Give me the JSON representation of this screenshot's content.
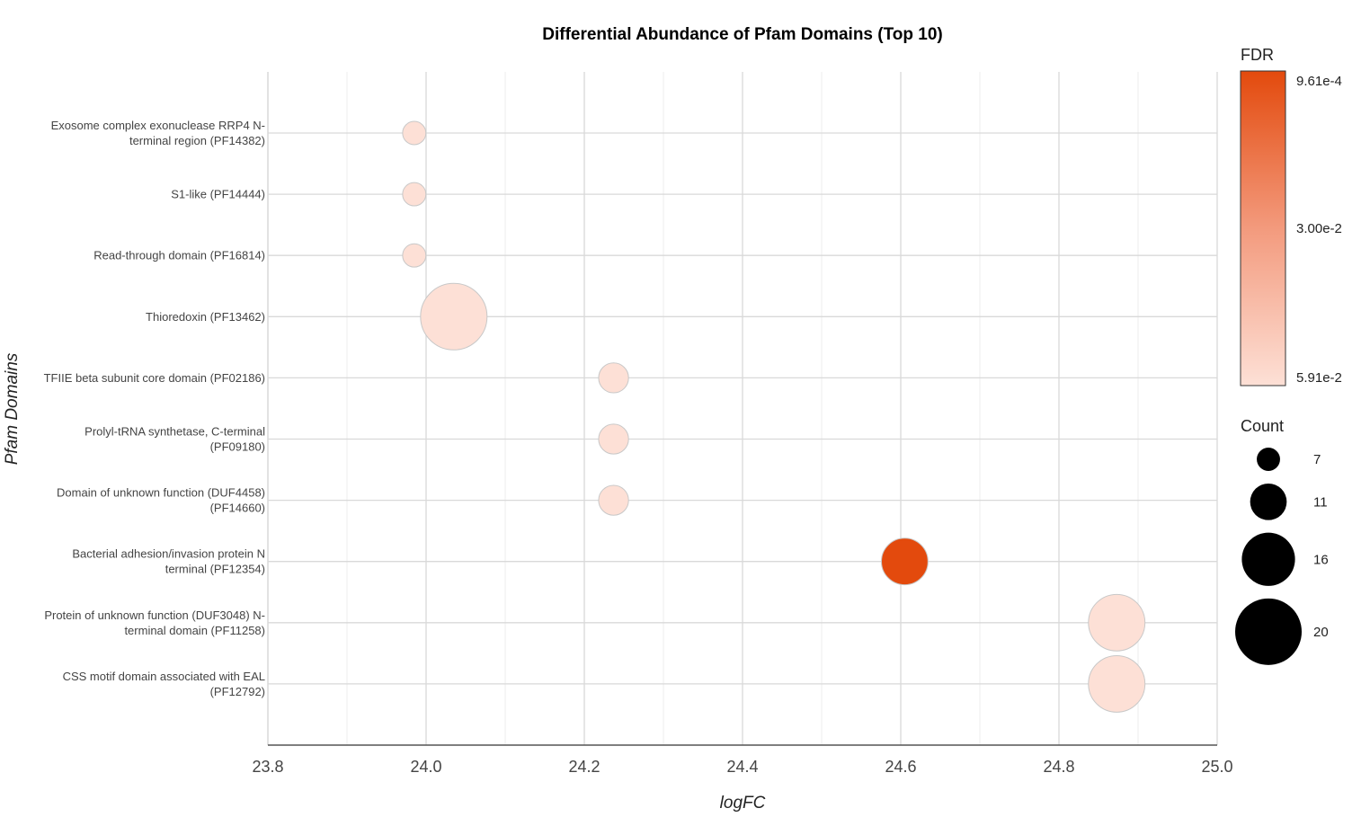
{
  "chart_data": {
    "type": "scatter",
    "title": "Differential Abundance of Pfam Domains (Top 10)",
    "xlabel": "logFC",
    "ylabel": "Pfam Domains",
    "xlim": [
      23.8,
      25.0
    ],
    "xticks": [
      "23.8",
      "24.0",
      "24.2",
      "24.4",
      "24.6",
      "24.8",
      "25.0"
    ],
    "xtick_values": [
      23.8,
      24.0,
      24.2,
      24.4,
      24.6,
      24.8,
      25.0
    ],
    "grid": true,
    "points": [
      {
        "label_lines": [
          "Exosome complex exonuclease RRP4 N-",
          "terminal region (PF14382)"
        ],
        "logFC": 23.985,
        "count": 7,
        "fdr": 0.0591
      },
      {
        "label_lines": [
          "S1-like (PF14444)"
        ],
        "logFC": 23.985,
        "count": 7,
        "fdr": 0.0591
      },
      {
        "label_lines": [
          "Read-through domain (PF16814)"
        ],
        "logFC": 23.985,
        "count": 7,
        "fdr": 0.0591
      },
      {
        "label_lines": [
          "Thioredoxin (PF13462)"
        ],
        "logFC": 24.035,
        "count": 20,
        "fdr": 0.0591
      },
      {
        "label_lines": [
          "TFIIE beta subunit core domain (PF02186)"
        ],
        "logFC": 24.237,
        "count": 9,
        "fdr": 0.0591
      },
      {
        "label_lines": [
          "Prolyl-tRNA synthetase, C-terminal",
          "(PF09180)"
        ],
        "logFC": 24.237,
        "count": 9,
        "fdr": 0.0591
      },
      {
        "label_lines": [
          "Domain of unknown function (DUF4458)",
          "(PF14660)"
        ],
        "logFC": 24.237,
        "count": 9,
        "fdr": 0.0591
      },
      {
        "label_lines": [
          "Bacterial adhesion/invasion protein N",
          "terminal (PF12354)"
        ],
        "logFC": 24.605,
        "count": 14,
        "fdr": 0.000961
      },
      {
        "label_lines": [
          "Protein of unknown function (DUF3048) N-",
          "terminal domain (PF11258)"
        ],
        "logFC": 24.873,
        "count": 17,
        "fdr": 0.0591
      },
      {
        "label_lines": [
          "CSS motif domain associated with EAL",
          "(PF12792)"
        ],
        "logFC": 24.873,
        "count": 17,
        "fdr": 0.0591
      }
    ],
    "color_legend": {
      "title": "FDR",
      "labels": [
        "9.61e-4",
        "3.00e-2",
        "5.91e-2"
      ],
      "values": [
        0.000961,
        0.03,
        0.0591
      ],
      "color_high_significance": "#e34a0d",
      "color_low_significance": "#fde0d6"
    },
    "size_legend": {
      "title": "Count",
      "labels": [
        "7",
        "11",
        "16",
        "20"
      ],
      "values": [
        7,
        11,
        16,
        20
      ]
    }
  },
  "colors": {
    "grid": "#d9d9d9",
    "axis": "#555555",
    "marker_stroke": "#c8c8c8",
    "legend_bar_border": "#333333"
  }
}
